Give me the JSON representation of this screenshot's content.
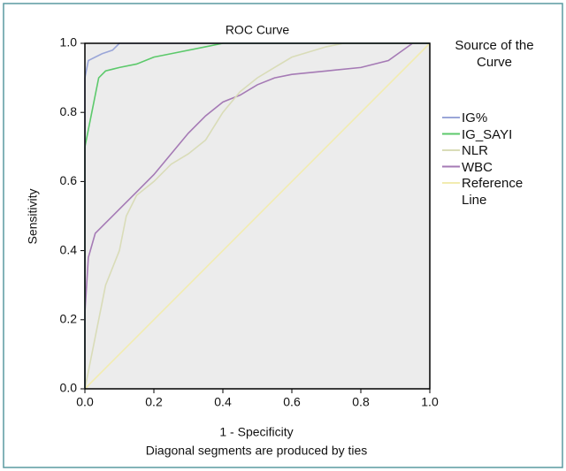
{
  "chart_data": {
    "type": "line",
    "title": "ROC Curve",
    "x_label": "1 - Specificity",
    "y_label": "Sensitivity",
    "footnote": "Diagonal segments are produced by ties",
    "legend_title": "Source of the Curve",
    "xlim": [
      0,
      1
    ],
    "ylim": [
      0,
      1
    ],
    "xticks": [
      {
        "value": 0,
        "label": "0.0"
      },
      0.2,
      0.4,
      0.6,
      0.8,
      {
        "value": 1,
        "label": "1.0"
      }
    ],
    "yticks": [
      {
        "value": 0,
        "label": "0.0"
      },
      0.2,
      0.4,
      0.6,
      0.8,
      {
        "value": 1,
        "label": "1.0"
      }
    ],
    "series": [
      {
        "name": "IG%",
        "color": "#9aa6d8",
        "x": [
          0,
          0,
          0.01,
          0.03,
          0.05,
          0.08,
          0.1,
          1
        ],
        "values": [
          0,
          0.9,
          0.95,
          0.96,
          0.97,
          0.98,
          1,
          1
        ]
      },
      {
        "name": "IG_SAYI",
        "color": "#5cc96b",
        "x": [
          0,
          0,
          0.01,
          0.02,
          0.03,
          0.04,
          0.06,
          0.1,
          0.15,
          0.2,
          0.25,
          0.35,
          0.4,
          1
        ],
        "values": [
          0,
          0.7,
          0.75,
          0.8,
          0.85,
          0.9,
          0.92,
          0.93,
          0.94,
          0.96,
          0.97,
          0.99,
          1,
          1
        ]
      },
      {
        "name": "NLR",
        "color": "#d9dcb8",
        "x": [
          0,
          0.02,
          0.04,
          0.06,
          0.08,
          0.1,
          0.12,
          0.15,
          0.2,
          0.25,
          0.3,
          0.35,
          0.4,
          0.45,
          0.5,
          0.55,
          0.6,
          0.7,
          0.75,
          1
        ],
        "values": [
          0,
          0.1,
          0.2,
          0.3,
          0.35,
          0.4,
          0.5,
          0.56,
          0.6,
          0.65,
          0.68,
          0.72,
          0.8,
          0.86,
          0.9,
          0.93,
          0.96,
          0.99,
          1,
          1
        ]
      },
      {
        "name": "WBC",
        "color": "#a57ab5",
        "x": [
          0,
          0,
          0.01,
          0.03,
          0.06,
          0.1,
          0.15,
          0.2,
          0.25,
          0.3,
          0.35,
          0.4,
          0.45,
          0.5,
          0.55,
          0.6,
          0.7,
          0.8,
          0.88,
          0.95,
          1
        ],
        "values": [
          0,
          0.22,
          0.38,
          0.45,
          0.48,
          0.52,
          0.57,
          0.62,
          0.68,
          0.74,
          0.79,
          0.83,
          0.85,
          0.88,
          0.9,
          0.91,
          0.92,
          0.93,
          0.95,
          1,
          1
        ]
      },
      {
        "name": "Reference Line",
        "color": "#f2ecb0",
        "x": [
          0,
          1
        ],
        "values": [
          0,
          1
        ]
      }
    ]
  }
}
